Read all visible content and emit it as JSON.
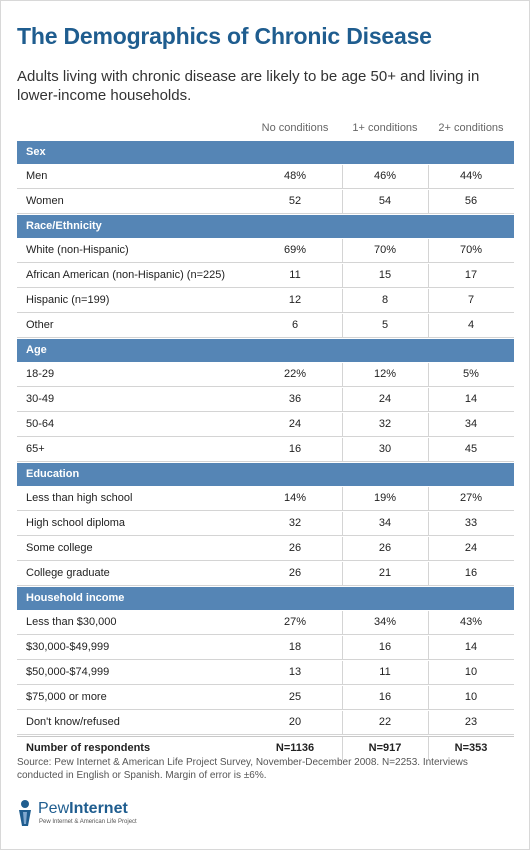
{
  "title": "The Demographics of Chronic Disease",
  "subtitle": "Adults living with chronic disease are likely to be age 50+ and living in lower-income households.",
  "columns": [
    "No conditions",
    "1+ conditions",
    "2+ conditions"
  ],
  "sections": [
    {
      "name": "Sex",
      "rows": [
        {
          "label": "Men",
          "values": [
            "48%",
            "46%",
            "44%"
          ]
        },
        {
          "label": "Women",
          "values": [
            "52",
            "54",
            "56"
          ]
        }
      ]
    },
    {
      "name": "Race/Ethnicity",
      "rows": [
        {
          "label": "White (non-Hispanic)",
          "values": [
            "69%",
            "70%",
            "70%"
          ]
        },
        {
          "label": "African American (non-Hispanic) (n=225)",
          "values": [
            "11",
            "15",
            "17"
          ]
        },
        {
          "label": "Hispanic (n=199)",
          "values": [
            "12",
            "8",
            "7"
          ]
        },
        {
          "label": "Other",
          "values": [
            "6",
            "5",
            "4"
          ]
        }
      ]
    },
    {
      "name": "Age",
      "rows": [
        {
          "label": "18-29",
          "values": [
            "22%",
            "12%",
            "5%"
          ]
        },
        {
          "label": "30-49",
          "values": [
            "36",
            "24",
            "14"
          ]
        },
        {
          "label": "50-64",
          "values": [
            "24",
            "32",
            "34"
          ]
        },
        {
          "label": "65+",
          "values": [
            "16",
            "30",
            "45"
          ]
        }
      ]
    },
    {
      "name": "Education",
      "rows": [
        {
          "label": "Less than high school",
          "values": [
            "14%",
            "19%",
            "27%"
          ]
        },
        {
          "label": "High school diploma",
          "values": [
            "32",
            "34",
            "33"
          ]
        },
        {
          "label": "Some college",
          "values": [
            "26",
            "26",
            "24"
          ]
        },
        {
          "label": "College graduate",
          "values": [
            "26",
            "21",
            "16"
          ]
        }
      ]
    },
    {
      "name": "Household income",
      "rows": [
        {
          "label": "Less than $30,000",
          "values": [
            "27%",
            "34%",
            "43%"
          ]
        },
        {
          "label": "$30,000-$49,999",
          "values": [
            "18",
            "16",
            "14"
          ]
        },
        {
          "label": "$50,000-$74,999",
          "values": [
            "13",
            "11",
            "10"
          ]
        },
        {
          "label": "$75,000 or more",
          "values": [
            "25",
            "16",
            "10"
          ]
        },
        {
          "label": "Don't know/refused",
          "values": [
            "20",
            "22",
            "23"
          ]
        }
      ]
    }
  ],
  "total": {
    "label": "Number of respondents",
    "values": [
      "N=1136",
      "N=917",
      "N=353"
    ]
  },
  "source": "Source: Pew Internet & American Life Project Survey, November-December 2008. N=2253. Interviews conducted in English or Spanish.  Margin of error is ±6%.",
  "logo": {
    "name_light": "Pew",
    "name_bold": "Internet",
    "tagline": "Pew Internet & American Life Project"
  },
  "colors": {
    "title": "#1f5d8f",
    "section_bar": "#5585b5",
    "row_border": "#d4d4d4"
  },
  "chart_data": {
    "type": "table",
    "title": "The Demographics of Chronic Disease",
    "subtitle": "Adults living with chronic disease are likely to be age 50+ and living in lower-income households.",
    "columns": [
      "No conditions",
      "1+ conditions",
      "2+ conditions"
    ],
    "groups": [
      {
        "name": "Sex",
        "rows": [
          [
            "Men",
            48,
            46,
            44
          ],
          [
            "Women",
            52,
            54,
            56
          ]
        ]
      },
      {
        "name": "Race/Ethnicity",
        "rows": [
          [
            "White (non-Hispanic)",
            69,
            70,
            70
          ],
          [
            "African American (non-Hispanic) (n=225)",
            11,
            15,
            17
          ],
          [
            "Hispanic (n=199)",
            12,
            8,
            7
          ],
          [
            "Other",
            6,
            5,
            4
          ]
        ]
      },
      {
        "name": "Age",
        "rows": [
          [
            "18-29",
            22,
            12,
            5
          ],
          [
            "30-49",
            36,
            24,
            14
          ],
          [
            "50-64",
            24,
            32,
            34
          ],
          [
            "65+",
            16,
            30,
            45
          ]
        ]
      },
      {
        "name": "Education",
        "rows": [
          [
            "Less than high school",
            14,
            19,
            27
          ],
          [
            "High school diploma",
            32,
            34,
            33
          ],
          [
            "Some college",
            26,
            26,
            24
          ],
          [
            "College graduate",
            26,
            21,
            16
          ]
        ]
      },
      {
        "name": "Household income",
        "rows": [
          [
            "Less than $30,000",
            27,
            34,
            43
          ],
          [
            "$30,000-$49,999",
            18,
            16,
            14
          ],
          [
            "$50,000-$74,999",
            13,
            11,
            10
          ],
          [
            "$75,000 or more",
            25,
            16,
            10
          ],
          [
            "Don't know/refused",
            20,
            22,
            23
          ]
        ]
      }
    ],
    "respondents": [
      "N=1136",
      "N=917",
      "N=353"
    ]
  }
}
